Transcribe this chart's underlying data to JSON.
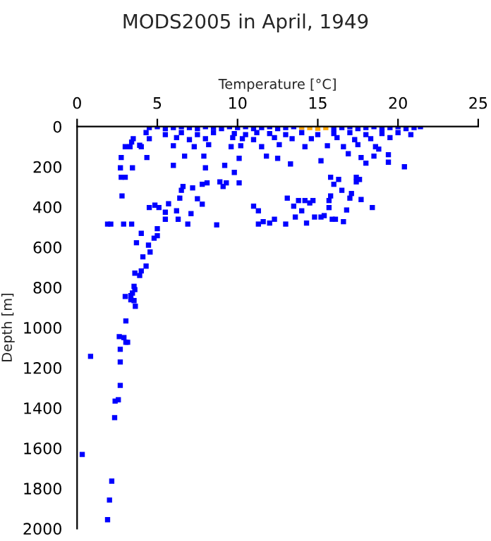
{
  "chart_data": {
    "type": "scatter",
    "title": "MODS2005 in April, 1949",
    "xlabel": "Temperature [°C]",
    "ylabel": "Depth [m]",
    "xlim": [
      0,
      25
    ],
    "xticks": [
      0,
      5,
      10,
      15,
      20,
      25
    ],
    "ylim": [
      2000,
      0
    ],
    "yticks": [
      0,
      200,
      400,
      600,
      800,
      1000,
      1200,
      1400,
      1600,
      1800,
      2000
    ],
    "grid": false,
    "legend": false,
    "marker": "square",
    "series": [
      {
        "color": "#0000ff",
        "x": [
          3.55,
          3.6,
          3.45,
          3.35,
          3.0,
          3.35,
          3.55,
          3.63,
          3.04,
          2.63,
          2.92,
          3.04,
          3.15,
          2.69,
          0.84,
          2.69,
          2.69,
          2.57,
          2.37,
          2.34,
          0.32,
          2.16,
          2.02,
          1.9,
          1.9,
          2.1,
          2.9,
          3.4,
          2.8,
          2.75,
          2.7,
          2.75,
          3.0,
          3.45,
          3.0,
          3.4,
          3.9,
          4.35,
          4.5,
          4.85,
          5.1,
          5.0,
          5.0,
          4.8,
          4.0,
          3.7,
          4.45,
          4.55,
          4.1,
          4.3,
          4.0,
          3.6,
          3.9,
          5.5,
          5.5,
          5.7,
          6.0,
          6.2,
          6.3,
          6.4,
          6.6,
          6.5,
          6.7,
          6.9,
          7.1,
          7.2,
          7.5,
          7.8,
          7.8,
          8.1,
          7.9,
          8.0,
          8.7,
          8.9,
          9.1,
          9.3,
          9.2,
          10.1,
          9.8,
          10.1,
          11.0,
          11.3,
          11.3,
          11.6,
          11.8,
          12.0,
          12.3,
          12.5,
          13.0,
          13.1,
          13.3,
          13.5,
          13.6,
          13.8,
          14.0,
          14.3,
          14.2,
          14.5,
          14.7,
          14.8,
          15.2,
          15.4,
          15.2,
          15.7,
          15.8,
          15.8,
          15.7,
          15.9,
          16.0,
          16.3,
          16.1,
          16.5,
          16.6,
          16.8,
          17.0,
          16.9,
          17.1,
          17.4,
          17.4,
          17.6,
          17.7,
          17.7,
          18.0,
          18.4,
          18.5,
          18.8,
          19.4,
          19.4,
          20.4,
          21.4,
          4.5,
          5.0,
          5.5,
          6.0,
          6.5,
          7.0,
          7.5,
          8.0,
          8.5,
          9.0,
          9.5,
          10.0,
          10.5,
          11.0,
          11.5,
          12.0,
          12.5,
          13.0,
          13.5,
          16.0,
          16.5,
          17.0,
          17.5,
          18.0,
          18.5,
          19.0,
          19.5,
          20.0,
          20.5,
          21.0,
          4.3,
          5.5,
          6.5,
          7.5,
          8.5,
          9.8,
          10.5,
          11.2,
          12.0,
          13.0,
          14.0,
          15.0,
          16.0,
          17.0,
          18.0,
          19.0,
          20.0,
          20.8,
          3.5,
          4.5,
          6.2,
          7.0,
          8.0,
          9.7,
          10.3,
          11.0,
          12.3,
          13.4,
          14.6,
          16.2,
          17.3,
          18.3,
          19.5,
          3.3,
          4.0,
          6.0,
          7.3,
          8.2,
          9.6,
          10.2,
          11.5,
          12.6,
          14.2,
          15.6,
          16.6,
          17.5,
          18.6
        ],
        "values": [
          795,
          811,
          828,
          841,
          845,
          862,
          866,
          894,
          967,
          1045,
          1050,
          1073,
          1073,
          1108,
          1143,
          1171,
          1288,
          1359,
          1366,
          1448,
          1631,
          1764,
          1858,
          1956,
          485,
          485,
          485,
          485,
          345,
          252,
          205,
          154,
          252,
          205,
          100,
          77,
          93,
          154,
          403,
          391,
          403,
          508,
          543,
          555,
          531,
          578,
          590,
          624,
          648,
          694,
          718,
          729,
          741,
          426,
          461,
          384,
          193,
          419,
          461,
          356,
          298,
          317,
          147,
          485,
          433,
          305,
          359,
          386,
          287,
          280,
          147,
          205,
          489,
          275,
          298,
          280,
          193,
          280,
          228,
          158,
          396,
          419,
          485,
          473,
          147,
          480,
          461,
          158,
          485,
          356,
          186,
          396,
          450,
          368,
          419,
          480,
          368,
          380,
          368,
          450,
          450,
          443,
          170,
          368,
          345,
          252,
          403,
          461,
          287,
          263,
          461,
          317,
          473,
          415,
          356,
          135,
          333,
          275,
          252,
          263,
          154,
          363,
          182,
          403,
          147,
          112,
          140,
          177,
          200,
          0,
          5,
          0,
          10,
          5,
          0,
          5,
          10,
          0,
          5,
          10,
          0,
          5,
          0,
          10,
          5,
          0,
          10,
          5,
          0,
          10,
          5,
          0,
          10,
          5,
          0,
          10,
          5,
          0,
          10,
          5,
          30,
          40,
          30,
          40,
          30,
          35,
          40,
          30,
          35,
          40,
          30,
          40,
          35,
          30,
          40,
          35,
          30,
          40,
          60,
          60,
          55,
          65,
          60,
          55,
          60,
          65,
          55,
          60,
          60,
          55,
          65,
          60,
          55,
          100,
          100,
          95,
          100,
          90,
          100,
          95,
          100,
          90,
          100,
          95,
          100,
          90,
          100
        ]
      },
      {
        "color": "#ffa500",
        "x": [
          14.0,
          14.5,
          15.0,
          15.5
        ],
        "values": [
          2,
          5,
          8,
          5
        ]
      }
    ]
  }
}
